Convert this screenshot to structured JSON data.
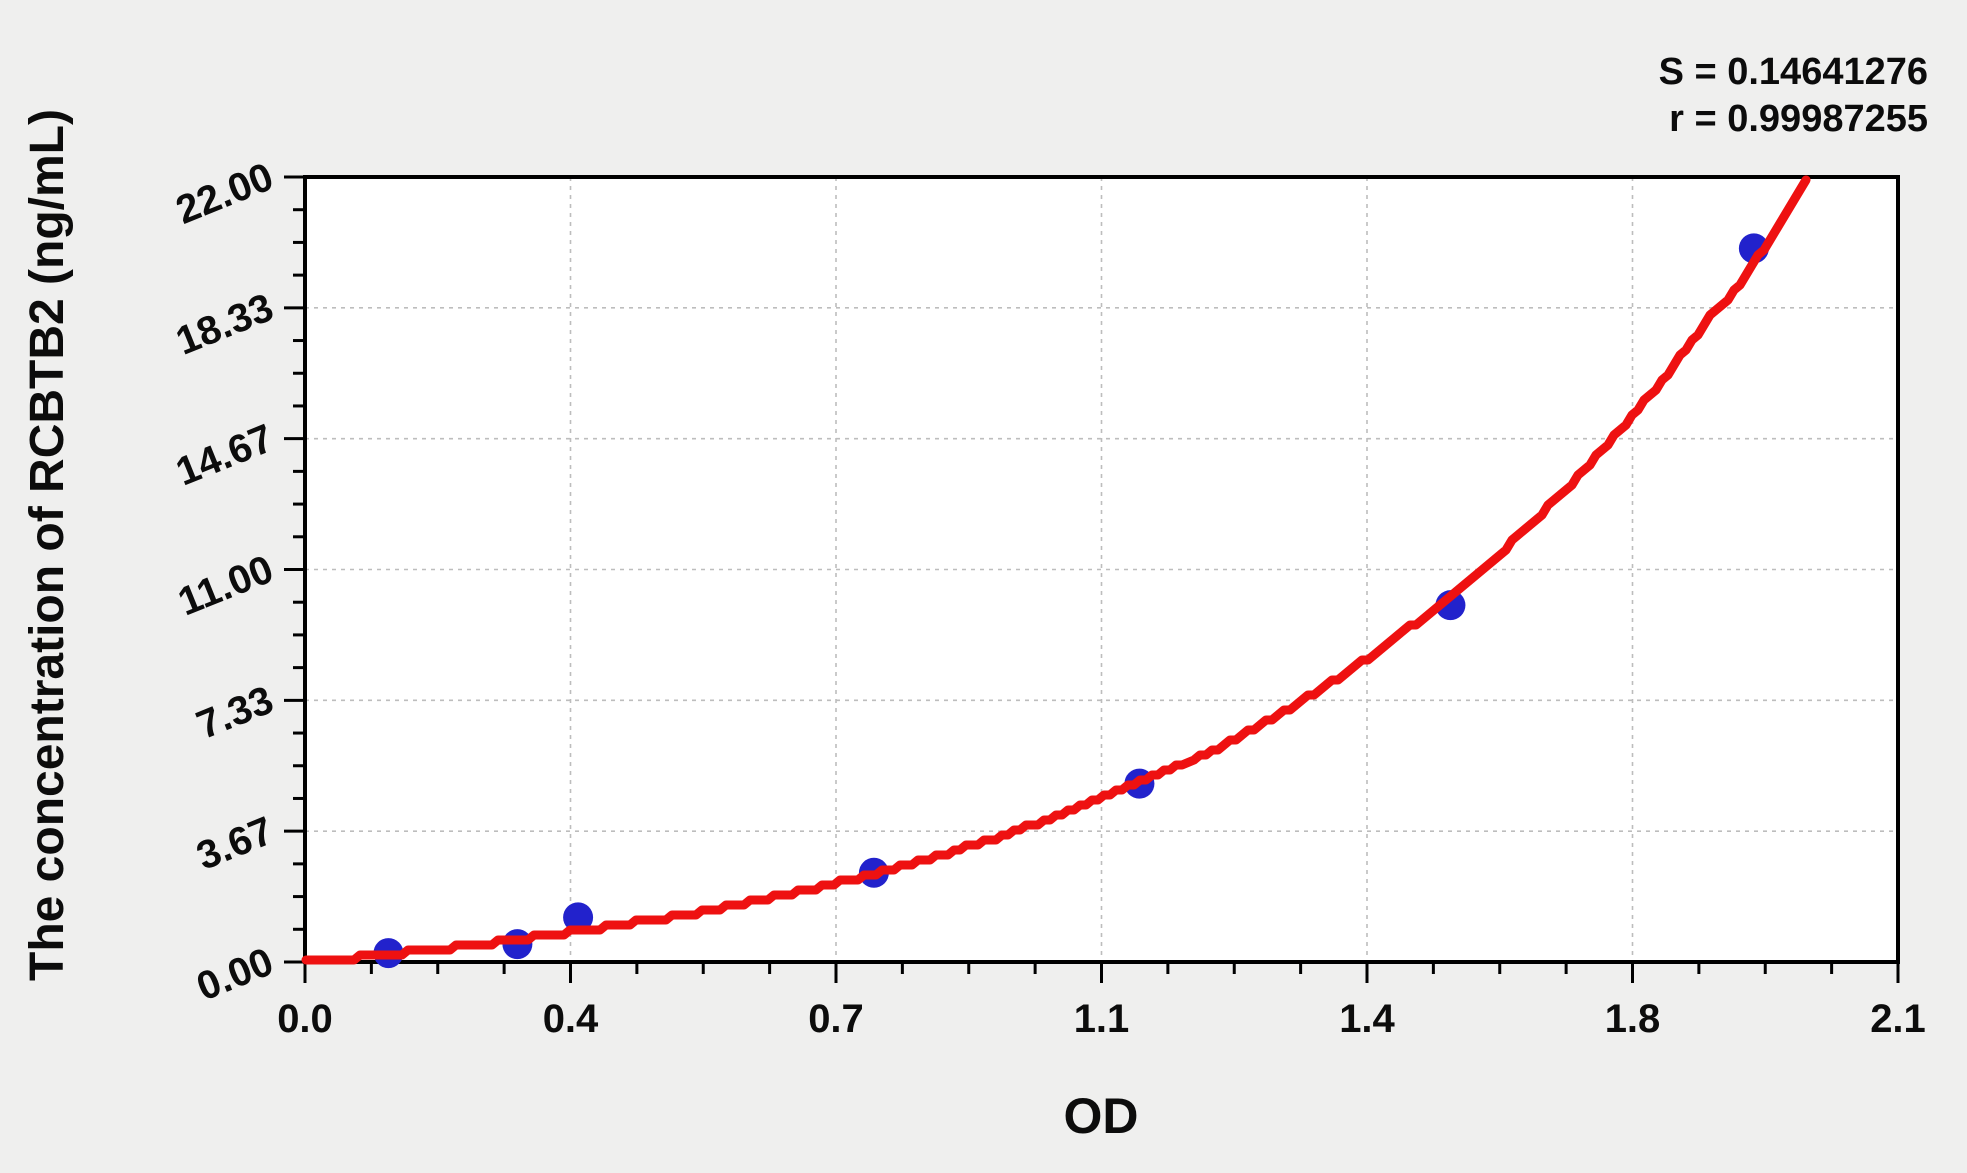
{
  "annotation": {
    "s_label": "S = 0.14641276",
    "r_label": "r = 0.99987255"
  },
  "chart_data": {
    "type": "scatter",
    "title": "",
    "xlabel": "OD",
    "ylabel": "The concentration of RCBTB2 (ng/mL)",
    "xlim": [
      0,
      2.1
    ],
    "ylim": [
      0,
      22
    ],
    "x_ticks": {
      "values": [
        0,
        0.35,
        0.7,
        1.05,
        1.4,
        1.75,
        2.1
      ],
      "labels": [
        "0.0",
        "0.4",
        "0.7",
        "1.1",
        "1.4",
        "1.8",
        "2.1"
      ]
    },
    "y_ticks": {
      "values": [
        0,
        3.6667,
        7.3333,
        11,
        14.6667,
        18.3333,
        22
      ],
      "labels": [
        "0.00",
        "3.67",
        "7.33",
        "11.00",
        "14.67",
        "18.33",
        "22.00"
      ]
    },
    "minor_ticks_between_majors": 3,
    "grid": {
      "show": true,
      "style": "dashed",
      "on": "major-ticks"
    },
    "series": [
      {
        "name": "standard-points",
        "type": "scatter",
        "marker": "circle",
        "color": "#2222cc",
        "points": [
          {
            "x": 0.11,
            "y": 0.25
          },
          {
            "x": 0.28,
            "y": 0.5
          },
          {
            "x": 0.36,
            "y": 1.25
          },
          {
            "x": 0.75,
            "y": 2.5
          },
          {
            "x": 1.1,
            "y": 5
          },
          {
            "x": 1.51,
            "y": 10
          },
          {
            "x": 1.91,
            "y": 20
          }
        ]
      },
      {
        "name": "fitted-curve",
        "type": "line",
        "color": "#ee1111",
        "model": "y = a*(exp(b*x)-1)",
        "a": 1.19,
        "b": 1.5,
        "x_range": [
          0,
          1.98
        ],
        "S": 0.14641276,
        "r": 0.99987255
      }
    ],
    "annotations": [
      "S = 0.14641276",
      "r = 0.99987255"
    ],
    "legend": null
  },
  "colors": {
    "background": "#efefee",
    "plot_background": "#ffffff",
    "axis": "#000000",
    "gridline": "#bdbdbd",
    "point": "#2222cc",
    "curve": "#ee1111",
    "text": "#0c0c0c"
  }
}
